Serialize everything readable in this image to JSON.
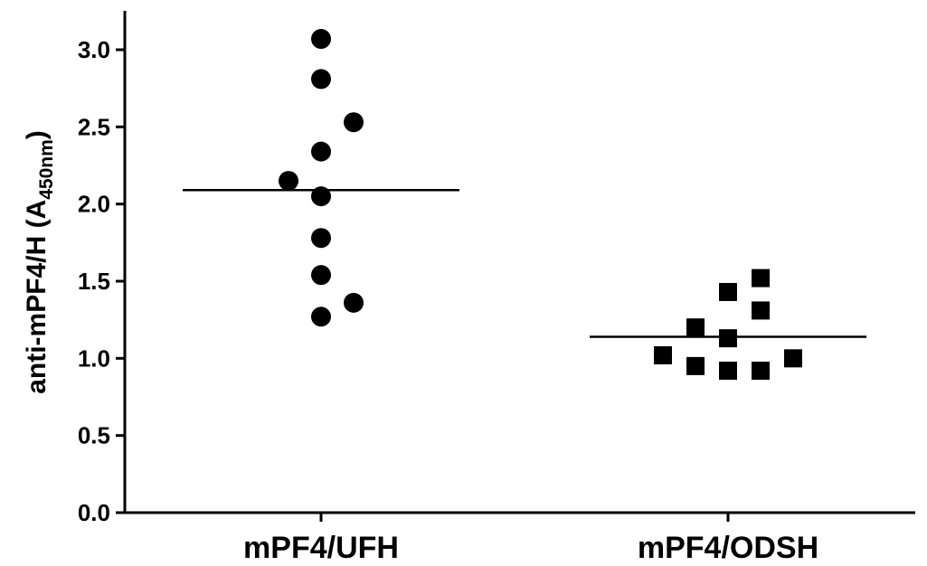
{
  "chart_data": {
    "type": "scatter",
    "title": "",
    "xlabel": "",
    "ylabel": {
      "main": "anti-mPF4/H (A",
      "subscript": "450nm",
      "close": ")"
    },
    "ylim": [
      0,
      3.25
    ],
    "yticks": [
      "0.0",
      "0.5",
      "1.0",
      "1.5",
      "2.0",
      "2.5",
      "3.0"
    ],
    "categories": [
      "mPF4/UFH",
      "mPF4/ODSH"
    ],
    "grid": false,
    "legend": "none",
    "series": [
      {
        "category": "mPF4/UFH",
        "marker": "circle",
        "color": "#000000",
        "mean": 2.09,
        "points": [
          {
            "offset": 0,
            "y": 3.07
          },
          {
            "offset": 0,
            "y": 2.81
          },
          {
            "offset": 1,
            "y": 2.53
          },
          {
            "offset": 0,
            "y": 2.34
          },
          {
            "offset": -1,
            "y": 2.15
          },
          {
            "offset": 0,
            "y": 2.05
          },
          {
            "offset": 0,
            "y": 1.78
          },
          {
            "offset": 0,
            "y": 1.54
          },
          {
            "offset": 1,
            "y": 1.36
          },
          {
            "offset": 0,
            "y": 1.27
          }
        ]
      },
      {
        "category": "mPF4/ODSH",
        "marker": "square",
        "color": "#000000",
        "mean": 1.14,
        "points": [
          {
            "offset": 1,
            "y": 1.52
          },
          {
            "offset": 0,
            "y": 1.43
          },
          {
            "offset": 1,
            "y": 1.31
          },
          {
            "offset": -1,
            "y": 1.2
          },
          {
            "offset": 0,
            "y": 1.13
          },
          {
            "offset": -2,
            "y": 1.02
          },
          {
            "offset": 2,
            "y": 1.0
          },
          {
            "offset": -1,
            "y": 0.95
          },
          {
            "offset": 0,
            "y": 0.92
          },
          {
            "offset": 1,
            "y": 0.92
          }
        ]
      }
    ]
  }
}
